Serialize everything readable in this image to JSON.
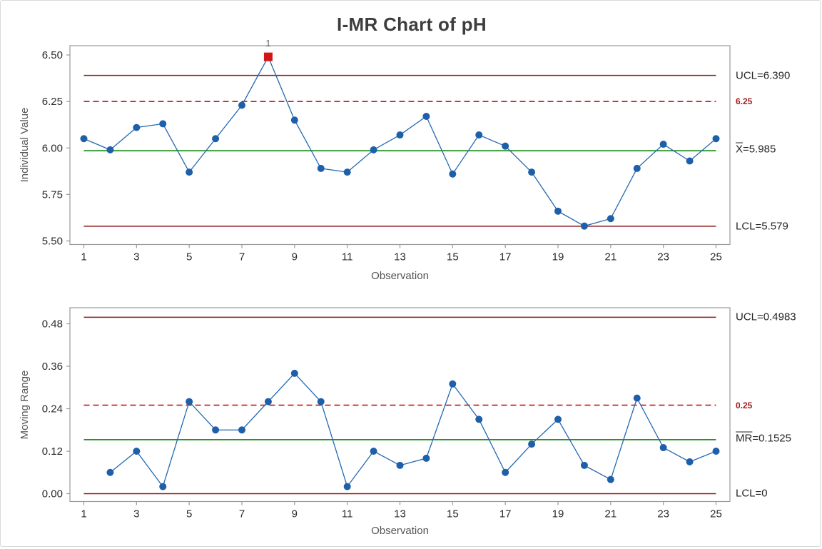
{
  "title": "I-MR Chart of pH",
  "flag_note": "1",
  "colors": {
    "point_blue": "#1E5FA9",
    "line_blue": "#2368B0",
    "limit_red": "#8E1B1B",
    "reference_red": "#C00000",
    "center_green": "#008000",
    "out_of_control_red": "#D21414",
    "axis_gray": "#999999",
    "tick_text": "#2B2B2B",
    "label_gray": "#565656"
  },
  "chart_data": [
    {
      "type": "line",
      "name": "individuals-chart",
      "ylabel": "Individual Value",
      "xlabel": "Observation",
      "x": [
        1,
        2,
        3,
        4,
        5,
        6,
        7,
        8,
        9,
        10,
        11,
        12,
        13,
        14,
        15,
        16,
        17,
        18,
        19,
        20,
        21,
        22,
        23,
        24,
        25
      ],
      "values": [
        6.05,
        5.99,
        6.11,
        6.13,
        5.87,
        6.05,
        6.23,
        6.49,
        6.15,
        5.89,
        5.87,
        5.99,
        6.07,
        6.17,
        5.86,
        6.07,
        6.01,
        5.87,
        5.66,
        5.58,
        5.62,
        5.89,
        6.02,
        5.93,
        6.05
      ],
      "xticks": [
        1,
        3,
        5,
        7,
        9,
        11,
        13,
        15,
        17,
        19,
        21,
        23,
        25
      ],
      "yticks": [
        6.5,
        6.25,
        6.0,
        5.75,
        5.5
      ],
      "ytick_labels": [
        "6.50",
        "6.25",
        "6.00",
        "5.75",
        "5.50"
      ],
      "ylim": [
        5.4808,
        6.55
      ],
      "lines": {
        "ucl": {
          "value": 6.39,
          "label": "UCL=6.390"
        },
        "center": {
          "value": 5.985,
          "label_bar": "X",
          "label_rest": "=5.985"
        },
        "lcl": {
          "value": 5.579,
          "label": "LCL=5.579"
        },
        "reference": {
          "value": 6.25,
          "label": "6.25"
        }
      },
      "out_of_control": [
        {
          "x": 8,
          "value": 6.49,
          "flag": "1"
        }
      ]
    },
    {
      "type": "line",
      "name": "moving-range-chart",
      "ylabel": "Moving Range",
      "xlabel": "Observation",
      "x": [
        2,
        3,
        4,
        5,
        6,
        7,
        8,
        9,
        10,
        11,
        12,
        13,
        14,
        15,
        16,
        17,
        18,
        19,
        20,
        21,
        22,
        23,
        24,
        25
      ],
      "values": [
        0.06,
        0.12,
        0.02,
        0.26,
        0.18,
        0.18,
        0.26,
        0.34,
        0.26,
        0.02,
        0.12,
        0.08,
        0.1,
        0.31,
        0.21,
        0.06,
        0.14,
        0.21,
        0.08,
        0.04,
        0.27,
        0.13,
        0.09,
        0.12
      ],
      "xticks": [
        1,
        3,
        5,
        7,
        9,
        11,
        13,
        15,
        17,
        19,
        21,
        23,
        25
      ],
      "yticks": [
        0.48,
        0.36,
        0.24,
        0.12,
        0.0
      ],
      "ytick_labels": [
        "0.48",
        "0.36",
        "0.24",
        "0.12",
        "0.00"
      ],
      "ylim": [
        -0.0222,
        0.5254
      ],
      "lines": {
        "ucl": {
          "value": 0.4983,
          "label": "UCL=0.4983"
        },
        "center": {
          "value": 0.1525,
          "label_bar": "MR",
          "label_rest": "=0.1525"
        },
        "lcl": {
          "value": 0,
          "label": "LCL=0"
        },
        "reference": {
          "value": 0.25,
          "label": "0.25"
        }
      },
      "out_of_control": []
    }
  ]
}
